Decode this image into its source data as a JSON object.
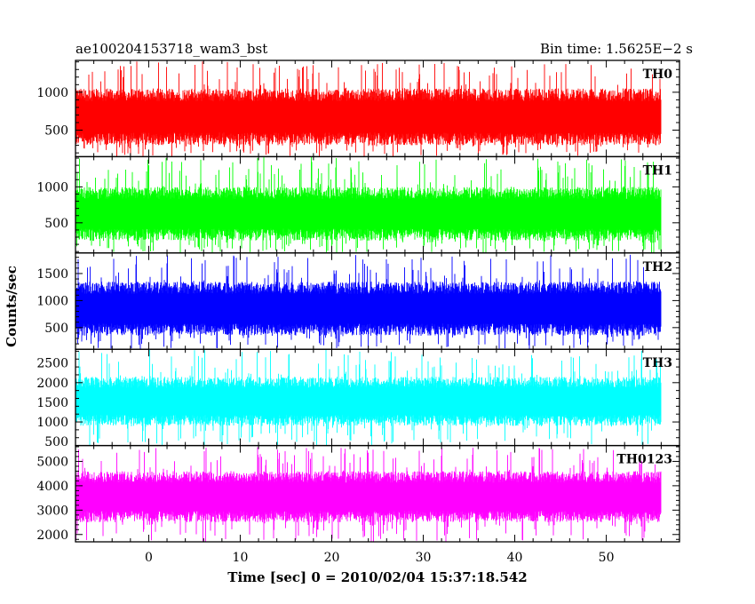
{
  "title_left": "ae100204153718_wam3_bst",
  "title_right": "Bin time: 1.5625E−2 s",
  "xlabel": "Time [sec] 0 = 2010/02/04 15:37:18.542",
  "ylabel": "Counts/sec",
  "chart_data": {
    "type": "line",
    "xlim": [
      -8,
      58
    ],
    "x_ticks": [
      0,
      10,
      20,
      30,
      40,
      50
    ],
    "x_tick_labels": [
      "0",
      "10",
      "20",
      "30",
      "40",
      "50"
    ],
    "data_x_range": [
      -8,
      56
    ],
    "panels": [
      {
        "name": "TH0",
        "color": "#ff0000",
        "ylim": [
          150,
          1420
        ],
        "y_ticks": [
          500,
          1000
        ],
        "y_tick_labels": [
          "500",
          "1000"
        ],
        "typical_range": [
          300,
          1050
        ],
        "min": 150,
        "max": 1420
      },
      {
        "name": "TH1",
        "color": "#00ff00",
        "ylim": [
          80,
          1420
        ],
        "y_ticks": [
          500,
          1000
        ],
        "y_tick_labels": [
          "500",
          "1000"
        ],
        "typical_range": [
          250,
          1000
        ],
        "min": 80,
        "max": 1420
      },
      {
        "name": "TH2",
        "color": "#0000ff",
        "ylim": [
          100,
          1880
        ],
        "y_ticks": [
          500,
          1000,
          1500
        ],
        "y_tick_labels": [
          "500",
          "1000",
          "1500"
        ],
        "typical_range": [
          350,
          1350
        ],
        "min": 100,
        "max": 1880
      },
      {
        "name": "TH3",
        "color": "#00ffff",
        "ylim": [
          400,
          2850
        ],
        "y_ticks": [
          500,
          1000,
          1500,
          2000,
          2500
        ],
        "y_tick_labels": [
          "500",
          "1000",
          "1500",
          "2000",
          "2500"
        ],
        "typical_range": [
          900,
          2150
        ],
        "min": 400,
        "max": 2850
      },
      {
        "name": "TH0123",
        "color": "#ff00ff",
        "ylim": [
          1700,
          5650
        ],
        "y_ticks": [
          2000,
          3000,
          4000,
          5000
        ],
        "y_tick_labels": [
          "2000",
          "3000",
          "4000",
          "5000"
        ],
        "typical_range": [
          2500,
          4600
        ],
        "min": 1700,
        "max": 5650
      }
    ]
  }
}
